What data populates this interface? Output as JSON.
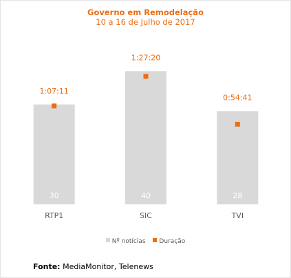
{
  "chart_data": {
    "type": "bar",
    "title": "Governo em Remodelação",
    "subtitle": "10 a 16 de Julho de 2017",
    "categories": [
      "RTP1",
      "SIC",
      "TVI"
    ],
    "series": [
      {
        "name": "Nº notícias",
        "type": "bar",
        "axis": "left",
        "values": [
          30,
          40,
          28
        ],
        "labels": [
          "30",
          "40",
          "28"
        ],
        "color": "#d9d9d9"
      },
      {
        "name": "Duração",
        "type": "scatter",
        "axis": "right",
        "values": [
          "1:07:11",
          "1:27:20",
          "0:54:41"
        ],
        "labels": [
          "1:07:11",
          "1:27:20",
          "0:54:41"
        ],
        "color": "#ed6d12"
      }
    ],
    "left_axis": {
      "min": 0,
      "max": 44
    },
    "right_axis": {
      "min": "0:00:00",
      "max": "1:40:00"
    },
    "grid": false,
    "legend": "bottom"
  },
  "source": {
    "label": "Fonte:",
    "text": " MediaMonitor, Telenews"
  },
  "colors": {
    "accent": "#ed6d12",
    "bar": "#d9d9d9",
    "bar_label": "#ffffff",
    "category_label": "#595959"
  }
}
